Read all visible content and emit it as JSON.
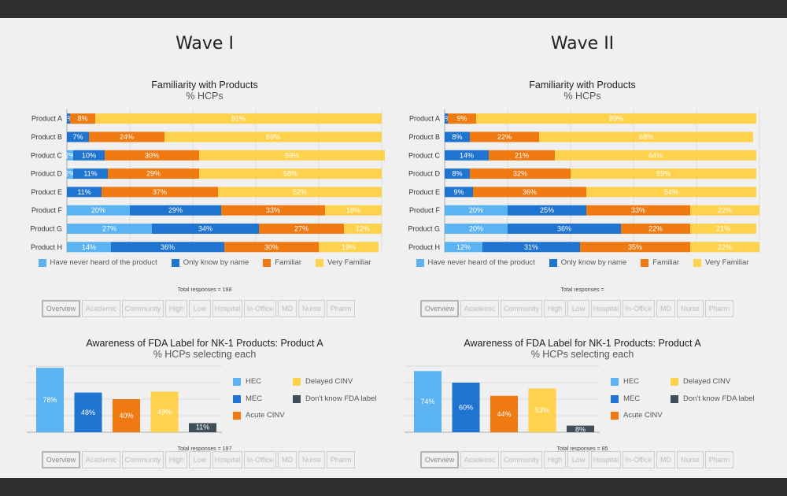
{
  "colors": {
    "never": "#5cb3f2",
    "name_only": "#1f74d1",
    "familiar": "#f07a12",
    "very": "#ffd24d",
    "dontknow": "#3f4f5a"
  },
  "waves": [
    {
      "title": "Wave I",
      "familiarity_title": "Familiarity with Products",
      "familiarity_subtitle": "% HCPs",
      "total_fam": "Total responses = 198",
      "awareness_title": "Awareness of FDA Label for NK-1 Products: Product A",
      "awareness_subtitle": "% HCPs selecting each",
      "total_aw": "Total responses = 197"
    },
    {
      "title": "Wave II",
      "familiarity_title": "Familiarity with Products",
      "familiarity_subtitle": "% HCPs",
      "total_fam": "Total responses =",
      "awareness_title": "Awareness of FDA Label for NK-1 Products: Product A",
      "awareness_subtitle": "% HCPs selecting each",
      "total_aw": "Total responses = 85"
    }
  ],
  "familiarity_legend": [
    "Have never heard of the product",
    "Only know by name",
    "Familiar",
    "Very Familiar"
  ],
  "awareness_legend": [
    "HEC",
    "Delayed CINV",
    "MEC",
    "Don't know FDA label",
    "Acute CINV"
  ],
  "buttons": [
    "Overview",
    "Academic",
    "Community",
    "High",
    "Low",
    "Hospital",
    "In-Office",
    "MD",
    "Nurse",
    "Pharm"
  ],
  "chart_data": [
    {
      "type": "bar",
      "orientation": "horizontal",
      "stacked": true,
      "title": "Familiarity with Products",
      "subtitle": "% HCPs",
      "categories": [
        "Product A",
        "Product B",
        "Product C",
        "Product D",
        "Product E",
        "Product F",
        "Product G",
        "Product H"
      ],
      "series": [
        {
          "name": "Have never heard of the product",
          "values": [
            0,
            0,
            2,
            2,
            0,
            20,
            27,
            14
          ],
          "labels": [
            "",
            "",
            "2%",
            "2%",
            "",
            "20%",
            "27%",
            "14%"
          ]
        },
        {
          "name": "Only know by name",
          "values": [
            1,
            7,
            10,
            11,
            11,
            29,
            34,
            36
          ],
          "labels": [
            "1%",
            "7%",
            "10%",
            "11%",
            "11%",
            "29%",
            "34%",
            "36%"
          ]
        },
        {
          "name": "Familiar",
          "values": [
            8,
            24,
            30,
            29,
            37,
            33,
            27,
            30
          ],
          "labels": [
            "8%",
            "24%",
            "30%",
            "29%",
            "37%",
            "33%",
            "27%",
            "30%"
          ]
        },
        {
          "name": "Very Familiar",
          "values": [
            91,
            69,
            59,
            58,
            52,
            18,
            12,
            19
          ],
          "labels": [
            "91%",
            "69%",
            "59%",
            "58%",
            "52%",
            "18%",
            "12%",
            "19%"
          ]
        }
      ],
      "xlim": [
        0,
        100
      ],
      "grid": true,
      "legend": "bottom"
    },
    {
      "type": "bar",
      "orientation": "horizontal",
      "stacked": true,
      "title": "Familiarity with Products",
      "subtitle": "% HCPs",
      "categories": [
        "Product A",
        "Product B",
        "Product C",
        "Product D",
        "Product E",
        "Product F",
        "Product G",
        "Product H"
      ],
      "series": [
        {
          "name": "Have never heard of the product",
          "values": [
            0,
            0,
            0,
            0,
            0,
            20,
            20,
            12
          ],
          "labels": [
            "",
            "",
            "",
            "",
            "",
            "20%",
            "20%",
            "12%"
          ]
        },
        {
          "name": "Only know by name",
          "values": [
            1,
            8,
            14,
            8,
            9,
            25,
            36,
            31
          ],
          "labels": [
            "1%",
            "8%",
            "14%",
            "8%",
            "9%",
            "25%",
            "36%",
            "31%"
          ]
        },
        {
          "name": "Familiar",
          "values": [
            9,
            22,
            21,
            32,
            36,
            33,
            22,
            35
          ],
          "labels": [
            "9%",
            "22%",
            "21%",
            "32%",
            "36%",
            "33%",
            "22%",
            "35%"
          ]
        },
        {
          "name": "Very Familiar",
          "values": [
            89,
            68,
            64,
            59,
            54,
            22,
            21,
            22
          ],
          "labels": [
            "89%",
            "68%",
            "64%",
            "59%",
            "54%",
            "22%",
            "21%",
            "22%"
          ]
        }
      ],
      "xlim": [
        0,
        100
      ],
      "grid": true,
      "legend": "bottom"
    },
    {
      "type": "bar",
      "title": "Awareness of FDA Label for NK-1 Products: Product A",
      "subtitle": "% HCPs selecting each",
      "categories": [
        "Product A"
      ],
      "series": [
        {
          "name": "HEC",
          "values": [
            78
          ],
          "label": "78%"
        },
        {
          "name": "MEC",
          "values": [
            48
          ],
          "label": "48%"
        },
        {
          "name": "Acute CINV",
          "values": [
            40
          ],
          "label": "40%"
        },
        {
          "name": "Delayed CINV",
          "values": [
            49
          ],
          "label": "49%"
        },
        {
          "name": "Don't know FDA label",
          "values": [
            11
          ],
          "label": "11%"
        }
      ],
      "ylim": [
        0,
        80
      ],
      "legend": "right"
    },
    {
      "type": "bar",
      "title": "Awareness of FDA Label for NK-1 Products: Product A",
      "subtitle": "% HCPs selecting each",
      "categories": [
        "Product A"
      ],
      "series": [
        {
          "name": "HEC",
          "values": [
            74
          ],
          "label": "74%"
        },
        {
          "name": "MEC",
          "values": [
            60
          ],
          "label": "60%"
        },
        {
          "name": "Acute CINV",
          "values": [
            44
          ],
          "label": "44%"
        },
        {
          "name": "Delayed CINV",
          "values": [
            53
          ],
          "label": "53%"
        },
        {
          "name": "Don't know FDA label",
          "values": [
            8
          ],
          "label": "8%"
        }
      ],
      "ylim": [
        0,
        80
      ],
      "legend": "right"
    }
  ]
}
